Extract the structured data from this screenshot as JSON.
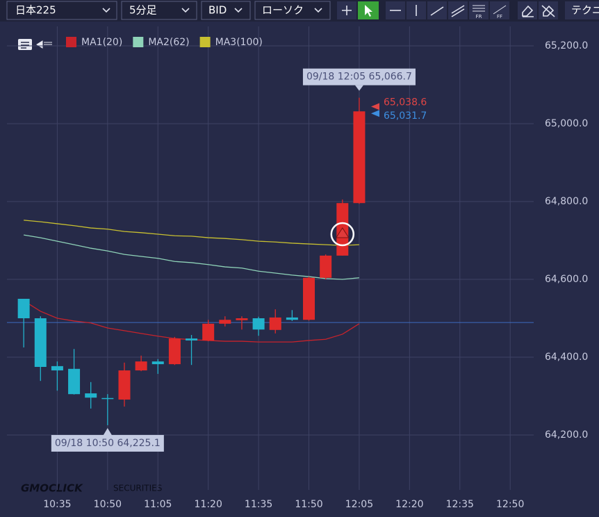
{
  "toolbar": {
    "symbol": "日本225",
    "timeframe": "5分足",
    "price_type": "BID",
    "chart_style": "ローソク",
    "tool_fr": "FR",
    "tool_ff": "FF",
    "technical": "テクニ"
  },
  "watermark": {
    "brand": "GMOCLICK",
    "suffix": "SECURITIES"
  },
  "chart_data": {
    "type": "candlestick",
    "x": [
      "10:25",
      "10:30",
      "10:35",
      "10:40",
      "10:45",
      "10:50",
      "10:55",
      "11:00",
      "11:05",
      "11:10",
      "11:15",
      "11:20",
      "11:25",
      "11:30",
      "11:35",
      "11:40",
      "11:45",
      "11:50",
      "11:55",
      "12:00",
      "12:05"
    ],
    "open": [
      64550,
      64500,
      64377,
      64370,
      64307,
      64295,
      64291,
      64366,
      64389,
      64382,
      64448,
      64443,
      64486,
      64495,
      64500,
      64470,
      64502,
      64496,
      64604,
      64661,
      64796
    ],
    "high": [
      64550,
      64505,
      64389,
      64421,
      64336,
      64305,
      64386,
      64404,
      64395,
      64452,
      64457,
      64496,
      64505,
      64505,
      64504,
      64523,
      64521,
      64607,
      64664,
      64805,
      65066.7
    ],
    "low": [
      64425,
      64339,
      64314,
      64304,
      64268,
      64225.1,
      64273,
      64364,
      64357,
      64380,
      64380,
      64441,
      64479,
      64471,
      64455,
      64461,
      64493,
      64494,
      64600,
      64661,
      64794
    ],
    "close": [
      64500,
      64375,
      64366,
      64305,
      64296,
      64294,
      64366,
      64389,
      64382,
      64448,
      64443,
      64486,
      64496,
      64500,
      64471,
      64502,
      64496,
      64604,
      64661,
      64796,
      65031.7
    ],
    "up_color": "#e02a2a",
    "down_color": "#22b3cc",
    "series": [
      {
        "name": "MA1(20)",
        "color": "#c8232b",
        "values": [
          64545,
          64518,
          64500,
          64493,
          64488,
          64475,
          64468,
          64461,
          64454,
          64448,
          64445,
          64443,
          64441,
          64441,
          64439,
          64439,
          64439,
          64443,
          64446,
          64459,
          64486
        ]
      },
      {
        "name": "MA2(62)",
        "color": "#8fd3b8",
        "values": [
          64714,
          64707,
          64698,
          64689,
          64680,
          64673,
          64664,
          64659,
          64654,
          64646,
          64643,
          64638,
          64632,
          64629,
          64621,
          64616,
          64611,
          64607,
          64602,
          64600,
          64604
        ]
      },
      {
        "name": "MA3(100)",
        "color": "#c8c030",
        "values": [
          64752,
          64748,
          64743,
          64738,
          64732,
          64729,
          64723,
          64720,
          64716,
          64712,
          64711,
          64707,
          64705,
          64702,
          64698,
          64696,
          64693,
          64691,
          64689,
          64687,
          64689
        ]
      }
    ],
    "reference_line": {
      "value": 64489,
      "color": "#3d6cc0"
    },
    "annotations": [
      {
        "x": "12:05",
        "value": 65066.7,
        "label": "09/18 12:05 65,066.7",
        "side": "top"
      },
      {
        "x": "10:50",
        "value": 64225.1,
        "label": "09/18 10:50 64,225.1",
        "side": "bottom"
      }
    ],
    "price_tags": [
      {
        "value": 65038.6,
        "label": "65,038.6",
        "color": "#e04545"
      },
      {
        "value": 65031.7,
        "label": "65,031.7",
        "color": "#3d8ee0"
      }
    ],
    "signal": {
      "x": "12:00",
      "value": 64716
    },
    "xlim": [
      "10:20",
      "12:57"
    ],
    "xticks": [
      "10:35",
      "10:50",
      "11:05",
      "11:20",
      "11:35",
      "11:50",
      "12:05",
      "12:20",
      "12:35",
      "12:50"
    ],
    "ylim": [
      64100,
      65250
    ],
    "yticks": [
      {
        "value": 64200,
        "label": "64,200.0"
      },
      {
        "value": 64400,
        "label": "64,400.0"
      },
      {
        "value": 64600,
        "label": "64,600.0"
      },
      {
        "value": 64800,
        "label": "64,800.0"
      },
      {
        "value": 65000,
        "label": "65,000.0"
      },
      {
        "value": 65200,
        "label": "65,200.0"
      }
    ],
    "grid": true
  }
}
